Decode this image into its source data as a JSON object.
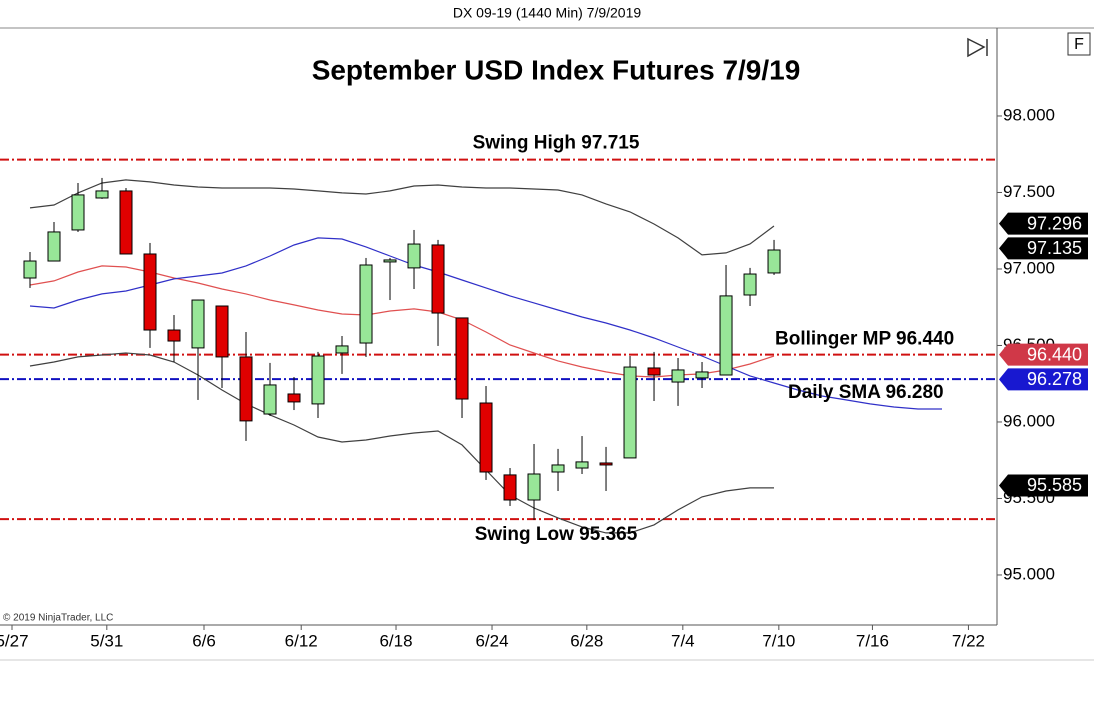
{
  "chart_data": {
    "type": "candlestick",
    "header": "DX 09-19 (1440 Min)  7/9/2019",
    "title": "September USD Index Futures 7/9/19",
    "copyright": "© 2019 NinjaTrader, LLC",
    "corner_label": "F",
    "xlim": [
      -1.25,
      40.29
    ],
    "xticks": [
      {
        "value": -0.75,
        "label": "5/27"
      },
      {
        "value": 3.2,
        "label": "5/31"
      },
      {
        "value": 7.25,
        "label": "6/6"
      },
      {
        "value": 11.3,
        "label": "6/12"
      },
      {
        "value": 15.25,
        "label": "6/18"
      },
      {
        "value": 19.25,
        "label": "6/24"
      },
      {
        "value": 23.2,
        "label": "6/28"
      },
      {
        "value": 27.2,
        "label": "7/4"
      },
      {
        "value": 31.2,
        "label": "7/10"
      },
      {
        "value": 35.1,
        "label": "7/16"
      },
      {
        "value": 39.1,
        "label": "7/22"
      }
    ],
    "ylim": [
      94.673,
      98.575
    ],
    "yticks": [
      {
        "value": 95,
        "label": "95.000"
      },
      {
        "value": 95.5,
        "label": "95.500"
      },
      {
        "value": 96,
        "label": "96.000"
      },
      {
        "value": 96.5,
        "label": "96.500"
      },
      {
        "value": 97,
        "label": "97.000"
      },
      {
        "value": 97.5,
        "label": "97.500"
      },
      {
        "value": 98,
        "label": "98.000"
      }
    ],
    "up_color": "#98e698",
    "down_color": "#e00000",
    "candles": {
      "x": [
        0,
        1,
        2,
        3,
        4,
        5,
        6,
        7,
        8,
        9,
        10,
        11,
        12,
        13,
        14,
        15,
        16,
        17,
        18,
        19,
        20,
        21,
        22,
        23,
        24,
        25,
        26,
        27,
        28,
        29,
        30,
        31
      ],
      "open": [
        96.941,
        97.052,
        97.255,
        97.464,
        97.51,
        97.098,
        96.601,
        96.484,
        96.758,
        96.425,
        96.052,
        96.183,
        96.118,
        96.451,
        96.516,
        97.046,
        97.007,
        97.157,
        96.68,
        96.124,
        95.654,
        95.49,
        95.673,
        95.699,
        95.732,
        95.765,
        96.353,
        96.261,
        96.288,
        96.307,
        96.83,
        96.974
      ],
      "high": [
        97.111,
        97.307,
        97.562,
        97.595,
        97.529,
        97.17,
        96.699,
        96.8,
        96.758,
        96.588,
        96.386,
        96.294,
        96.458,
        96.562,
        97.072,
        97.072,
        97.255,
        97.19,
        96.68,
        96.235,
        95.699,
        95.856,
        95.824,
        95.908,
        95.837,
        96.431,
        96.458,
        96.418,
        96.392,
        97.026,
        97.007,
        97.19
      ],
      "low": [
        96.876,
        97.05,
        97.242,
        97.458,
        97.098,
        96.484,
        96.392,
        96.144,
        96.222,
        95.876,
        96.04,
        96.078,
        96.026,
        96.314,
        96.425,
        96.797,
        96.869,
        96.497,
        96.026,
        95.621,
        95.451,
        95.359,
        95.549,
        95.66,
        95.549,
        95.765,
        96.137,
        96.105,
        96.222,
        96.307,
        96.758,
        96.961
      ],
      "close": [
        97.052,
        97.242,
        97.484,
        97.51,
        97.098,
        96.601,
        96.529,
        96.797,
        96.425,
        96.007,
        96.242,
        96.131,
        96.431,
        96.497,
        97.026,
        97.059,
        97.163,
        96.712,
        96.15,
        95.673,
        95.49,
        95.66,
        95.719,
        95.739,
        95.719,
        96.359,
        96.307,
        96.34,
        96.327,
        96.824,
        96.967,
        97.124
      ]
    },
    "series": [
      {
        "color": "#404040",
        "x": [
          0,
          1,
          2,
          3,
          4,
          5,
          6,
          7,
          8,
          9,
          10,
          11,
          12,
          13,
          14,
          15,
          16,
          17,
          18,
          19,
          20,
          21,
          22,
          23,
          24,
          25,
          26,
          27,
          28,
          29,
          30,
          31
        ],
        "values": [
          97.399,
          97.418,
          97.497,
          97.562,
          97.582,
          97.569,
          97.549,
          97.536,
          97.529,
          97.529,
          97.529,
          97.523,
          97.51,
          97.497,
          97.49,
          97.51,
          97.542,
          97.549,
          97.536,
          97.529,
          97.529,
          97.523,
          97.516,
          97.484,
          97.425,
          97.373,
          97.294,
          97.203,
          97.092,
          97.105,
          97.163,
          97.281
        ]
      },
      {
        "color": "#404040",
        "x": [
          0,
          1,
          2,
          3,
          4,
          5,
          6,
          7,
          8,
          9,
          10,
          11,
          12,
          13,
          14,
          15,
          16,
          17,
          18,
          19,
          20,
          21,
          22,
          23,
          24,
          25,
          26,
          27,
          28,
          29,
          30,
          31
        ],
        "values": [
          96.366,
          96.392,
          96.425,
          96.438,
          96.451,
          96.438,
          96.392,
          96.307,
          96.209,
          96.118,
          96.046,
          95.98,
          95.902,
          95.869,
          95.882,
          95.908,
          95.928,
          95.941,
          95.85,
          95.686,
          95.523,
          95.438,
          95.373,
          95.314,
          95.275,
          95.275,
          95.327,
          95.425,
          95.51,
          95.549,
          95.569,
          95.569
        ]
      },
      {
        "color": "#e05050",
        "x": [
          0,
          1,
          2,
          3,
          4,
          5,
          6,
          7,
          8,
          9,
          10,
          11,
          12,
          13,
          14,
          15,
          16,
          17,
          18,
          19,
          20,
          21,
          22,
          23,
          24,
          25,
          26,
          27,
          28,
          29,
          30,
          31
        ],
        "values": [
          96.895,
          96.922,
          96.98,
          97.02,
          97.013,
          96.98,
          96.941,
          96.908,
          96.869,
          96.837,
          96.797,
          96.765,
          96.732,
          96.706,
          96.699,
          96.725,
          96.739,
          96.719,
          96.667,
          96.588,
          96.503,
          96.451,
          96.399,
          96.359,
          96.327,
          96.301,
          96.294,
          96.307,
          96.314,
          96.34,
          96.379,
          96.431
        ]
      },
      {
        "color": "#3030c8",
        "x": [
          0,
          1,
          2,
          3,
          4,
          5,
          6,
          7,
          8,
          9,
          10,
          11,
          12,
          13,
          14,
          15,
          16,
          17,
          18,
          19,
          20,
          21,
          22,
          23,
          24,
          25,
          26,
          27,
          28,
          29,
          30,
          31,
          32,
          33,
          34,
          35,
          36,
          37,
          38
        ],
        "values": [
          96.758,
          96.745,
          96.797,
          96.837,
          96.856,
          96.895,
          96.935,
          96.954,
          96.974,
          97.02,
          97.085,
          97.157,
          97.203,
          97.196,
          97.144,
          97.085,
          97.026,
          96.98,
          96.928,
          96.876,
          96.824,
          96.778,
          96.732,
          96.686,
          96.647,
          96.601,
          96.549,
          96.49,
          96.431,
          96.366,
          96.301,
          96.255,
          96.209,
          96.17,
          96.144,
          96.118,
          96.098,
          96.085,
          96.085
        ]
      }
    ],
    "levels": [
      {
        "label": "Swing High 97.715",
        "value": 97.715,
        "color": "#d01010"
      },
      {
        "label": "Bollinger MP 96.440",
        "value": 96.44,
        "color": "#d01010"
      },
      {
        "label": "Daily SMA 96.280",
        "value": 96.28,
        "color": "#1010c0"
      },
      {
        "label": "Swing Low 95.365",
        "value": 95.365,
        "color": "#d01010"
      }
    ],
    "price_markers": [
      {
        "label": "97.296",
        "value": 97.296,
        "color": "#000000"
      },
      {
        "label": "97.135",
        "value": 97.135,
        "color": "#000000"
      },
      {
        "label": "96.440",
        "value": 96.44,
        "color": "#d03848"
      },
      {
        "label": "96.278",
        "value": 96.278,
        "color": "#1818d0"
      },
      {
        "label": "95.585",
        "value": 95.585,
        "color": "#000000"
      }
    ]
  }
}
